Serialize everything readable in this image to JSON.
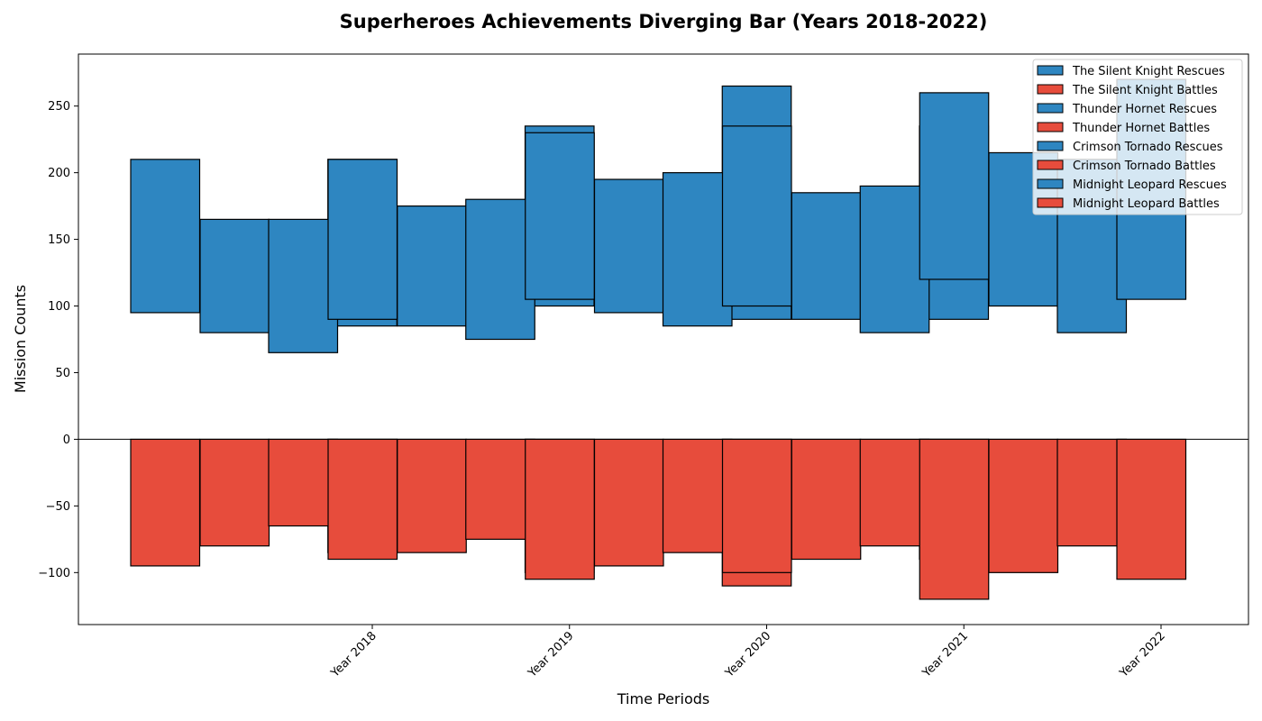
{
  "chart_data": {
    "type": "bar",
    "title": "Superheroes Achievements Diverging Bar (Years 2018-2022)",
    "xlabel": "Time Periods",
    "ylabel": "Mission Counts",
    "categories": [
      "Year 2018",
      "Year 2019",
      "Year 2020",
      "Year 2021",
      "Year 2022"
    ],
    "yticks": [
      -100,
      -50,
      0,
      50,
      100,
      150,
      200,
      250
    ],
    "ylim": [
      -139,
      289
    ],
    "grid": false,
    "legend_position": "top-right",
    "colors": {
      "rescues": "#2e86c1",
      "battles": "#e74c3c",
      "edge": "#000000"
    },
    "series": [
      {
        "name": "The Silent Knight",
        "rescues": [
          {
            "low": 95,
            "high": 210
          },
          {
            "low": 85,
            "high": 210
          },
          {
            "low": 100,
            "high": 235
          },
          {
            "low": 90,
            "high": 265
          },
          {
            "low": 90,
            "high": 235
          }
        ],
        "battles": [
          -95,
          -85,
          -100,
          -110,
          -90
        ]
      },
      {
        "name": "Thunder Hornet",
        "rescues": [
          {
            "low": 80,
            "high": 165
          },
          {
            "low": 85,
            "high": 175
          },
          {
            "low": 95,
            "high": 195
          },
          {
            "low": 90,
            "high": 185
          },
          {
            "low": 100,
            "high": 215
          }
        ],
        "battles": [
          -80,
          -85,
          -95,
          -90,
          -100
        ]
      },
      {
        "name": "Crimson Tornado",
        "rescues": [
          {
            "low": 65,
            "high": 165
          },
          {
            "low": 75,
            "high": 180
          },
          {
            "low": 85,
            "high": 200
          },
          {
            "low": 80,
            "high": 190
          },
          {
            "low": 80,
            "high": 210
          }
        ],
        "battles": [
          -65,
          -75,
          -85,
          -80,
          -80
        ]
      },
      {
        "name": "Midnight Leopard",
        "rescues": [
          {
            "low": 90,
            "high": 210
          },
          {
            "low": 105,
            "high": 230
          },
          {
            "low": 100,
            "high": 235
          },
          {
            "low": 120,
            "high": 260
          },
          {
            "low": 105,
            "high": 270
          }
        ],
        "battles": [
          -90,
          -105,
          -100,
          -120,
          -105
        ]
      }
    ],
    "legend": [
      {
        "label": "The Silent Knight Rescues",
        "kind": "rescues"
      },
      {
        "label": "The Silent Knight Battles",
        "kind": "battles"
      },
      {
        "label": "Thunder Hornet Rescues",
        "kind": "rescues"
      },
      {
        "label": "Thunder Hornet Battles",
        "kind": "battles"
      },
      {
        "label": "Crimson Tornado Rescues",
        "kind": "rescues"
      },
      {
        "label": "Crimson Tornado Battles",
        "kind": "battles"
      },
      {
        "label": "Midnight Leopard Rescues",
        "kind": "rescues"
      },
      {
        "label": "Midnight Leopard Battles",
        "kind": "battles"
      }
    ]
  }
}
